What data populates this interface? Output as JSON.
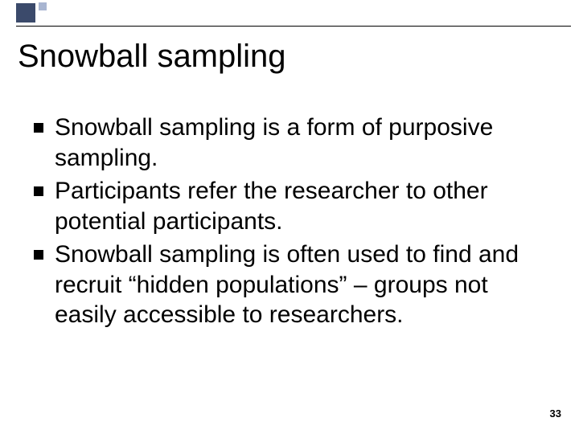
{
  "decoration": {
    "square_large_color": "#3b4a6b",
    "square_small_color": "#a8b5d1",
    "rule_color": "#000000"
  },
  "title": "Snowball sampling",
  "bullets": [
    {
      "text": "Snowball sampling is a form of purposive sampling."
    },
    {
      "text": "Participants refer the researcher to other potential participants."
    },
    {
      "text": "Snowball sampling is often used to find and recruit “hidden populations” – groups not easily accessible to researchers."
    }
  ],
  "page_number": "33",
  "typography": {
    "title_fontsize": 40,
    "body_fontsize": 30,
    "pagenum_fontsize": 13,
    "text_color": "#000000",
    "background_color": "#ffffff"
  }
}
